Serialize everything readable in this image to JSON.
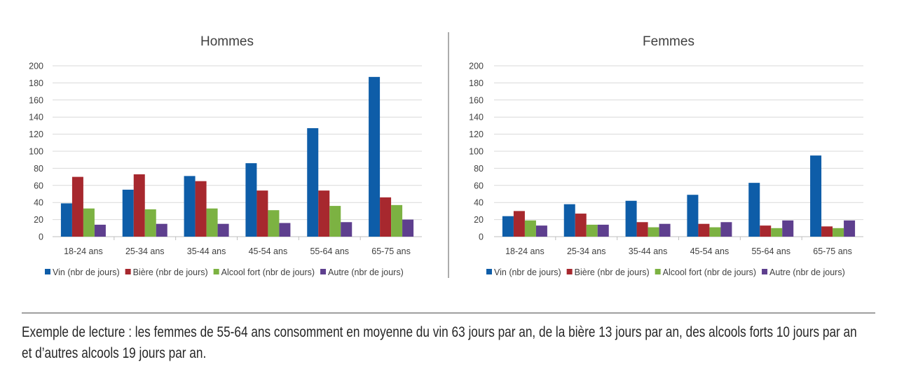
{
  "chart_data": [
    {
      "type": "bar",
      "title": "Hommes",
      "categories": [
        "18-24 ans",
        "25-34 ans",
        "35-44 ans",
        "45-54 ans",
        "55-64 ans",
        "65-75 ans"
      ],
      "ylim": [
        0,
        200
      ],
      "yticks": [
        0,
        20,
        40,
        60,
        80,
        100,
        120,
        140,
        160,
        180,
        200
      ],
      "grid": true,
      "legend": "bottom",
      "series": [
        {
          "name": "Vin (nbr de jours)",
          "color": "#0E5DA8",
          "values": [
            39,
            55,
            71,
            86,
            127,
            187
          ]
        },
        {
          "name": "Bière (nbr de jours)",
          "color": "#A7282E",
          "values": [
            70,
            73,
            65,
            54,
            54,
            46
          ]
        },
        {
          "name": "Alcool fort (nbr de jours)",
          "color": "#7CB242",
          "values": [
            33,
            32,
            33,
            31,
            36,
            37
          ]
        },
        {
          "name": "Autre (nbr de jours)",
          "color": "#5E3F8E",
          "values": [
            14,
            15,
            15,
            16,
            17,
            20
          ]
        }
      ]
    },
    {
      "type": "bar",
      "title": "Femmes",
      "categories": [
        "18-24 ans",
        "25-34 ans",
        "35-44 ans",
        "45-54 ans",
        "55-64 ans",
        "65-75 ans"
      ],
      "ylim": [
        0,
        200
      ],
      "yticks": [
        0,
        20,
        40,
        60,
        80,
        100,
        120,
        140,
        160,
        180,
        200
      ],
      "grid": true,
      "legend": "bottom",
      "series": [
        {
          "name": "Vin (nbr de jours)",
          "color": "#0E5DA8",
          "values": [
            24,
            38,
            42,
            49,
            63,
            95
          ]
        },
        {
          "name": "Bière (nbr de jours)",
          "color": "#A7282E",
          "values": [
            30,
            27,
            17,
            15,
            13,
            12
          ]
        },
        {
          "name": "Alcool fort (nbr de jours)",
          "color": "#7CB242",
          "values": [
            19,
            14,
            11,
            11,
            10,
            10
          ]
        },
        {
          "name": "Autre (nbr de jours)",
          "color": "#5E3F8E",
          "values": [
            13,
            14,
            15,
            17,
            19,
            19
          ]
        }
      ]
    }
  ],
  "caption": "Exemple de lecture : les femmes de 55-64 ans consomment en moyenne du vin 63 jours par an, de la bière 13 jours par an, des alcools forts 10 jours par an et d’autres alcools 19 jours par an."
}
